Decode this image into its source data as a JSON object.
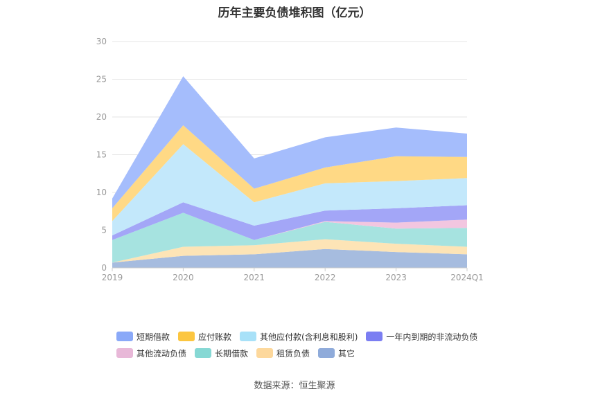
{
  "chart_data": {
    "type": "area",
    "title": "历年主要负债堆积图（亿元）",
    "categories": [
      "2019",
      "2020",
      "2021",
      "2022",
      "2023",
      "2024Q1"
    ],
    "ylim": [
      0,
      30
    ],
    "yticks": [
      0,
      5,
      10,
      15,
      20,
      25,
      30
    ],
    "grid": true,
    "legend_position": "bottom",
    "series": [
      {
        "name": "其它",
        "color": "#a6bcdf",
        "values": [
          0.7,
          1.6,
          1.8,
          2.5,
          2.1,
          1.8
        ]
      },
      {
        "name": "租赁负债",
        "color": "#fde4b6",
        "values": [
          0.0,
          1.2,
          1.2,
          1.3,
          1.1,
          1.0
        ]
      },
      {
        "name": "长期借款",
        "color": "#a6e3e0",
        "values": [
          3.0,
          4.5,
          0.7,
          2.3,
          2.0,
          2.5
        ]
      },
      {
        "name": "其他流动负债",
        "color": "#f2c6e0",
        "values": [
          0.0,
          0.0,
          0.0,
          0.1,
          0.8,
          1.1
        ]
      },
      {
        "name": "一年内到期的非流动负债",
        "color": "#a3a6f7",
        "values": [
          0.6,
          1.4,
          1.9,
          1.4,
          1.9,
          1.9
        ]
      },
      {
        "name": "其他应付款(含利息和股利)",
        "color": "#c3e8fb",
        "values": [
          1.9,
          7.7,
          3.1,
          3.6,
          3.6,
          3.6
        ]
      },
      {
        "name": "应付账款",
        "color": "#ffd985",
        "values": [
          1.7,
          2.5,
          1.8,
          2.1,
          3.3,
          2.8
        ]
      },
      {
        "name": "短期借款",
        "color": "#a5bdfc",
        "values": [
          1.3,
          6.5,
          4.0,
          4.0,
          3.8,
          3.1
        ]
      }
    ]
  },
  "legend": {
    "rows": [
      [
        {
          "label": "短期借款",
          "color": "#8aa9f8"
        },
        {
          "label": "应付账款",
          "color": "#fcc640"
        },
        {
          "label": "其他应付款(含利息和股利)",
          "color": "#a8e1f8"
        },
        {
          "label": "一年内到期的非流动负债",
          "color": "#7b7ef2"
        }
      ],
      [
        {
          "label": "其他流动负债",
          "color": "#e8b8d8"
        },
        {
          "label": "长期借款",
          "color": "#86d8d4"
        },
        {
          "label": "租赁负债",
          "color": "#fdd89c"
        },
        {
          "label": "其它",
          "color": "#8fabda"
        }
      ]
    ]
  },
  "source": "数据来源：恒生聚源"
}
